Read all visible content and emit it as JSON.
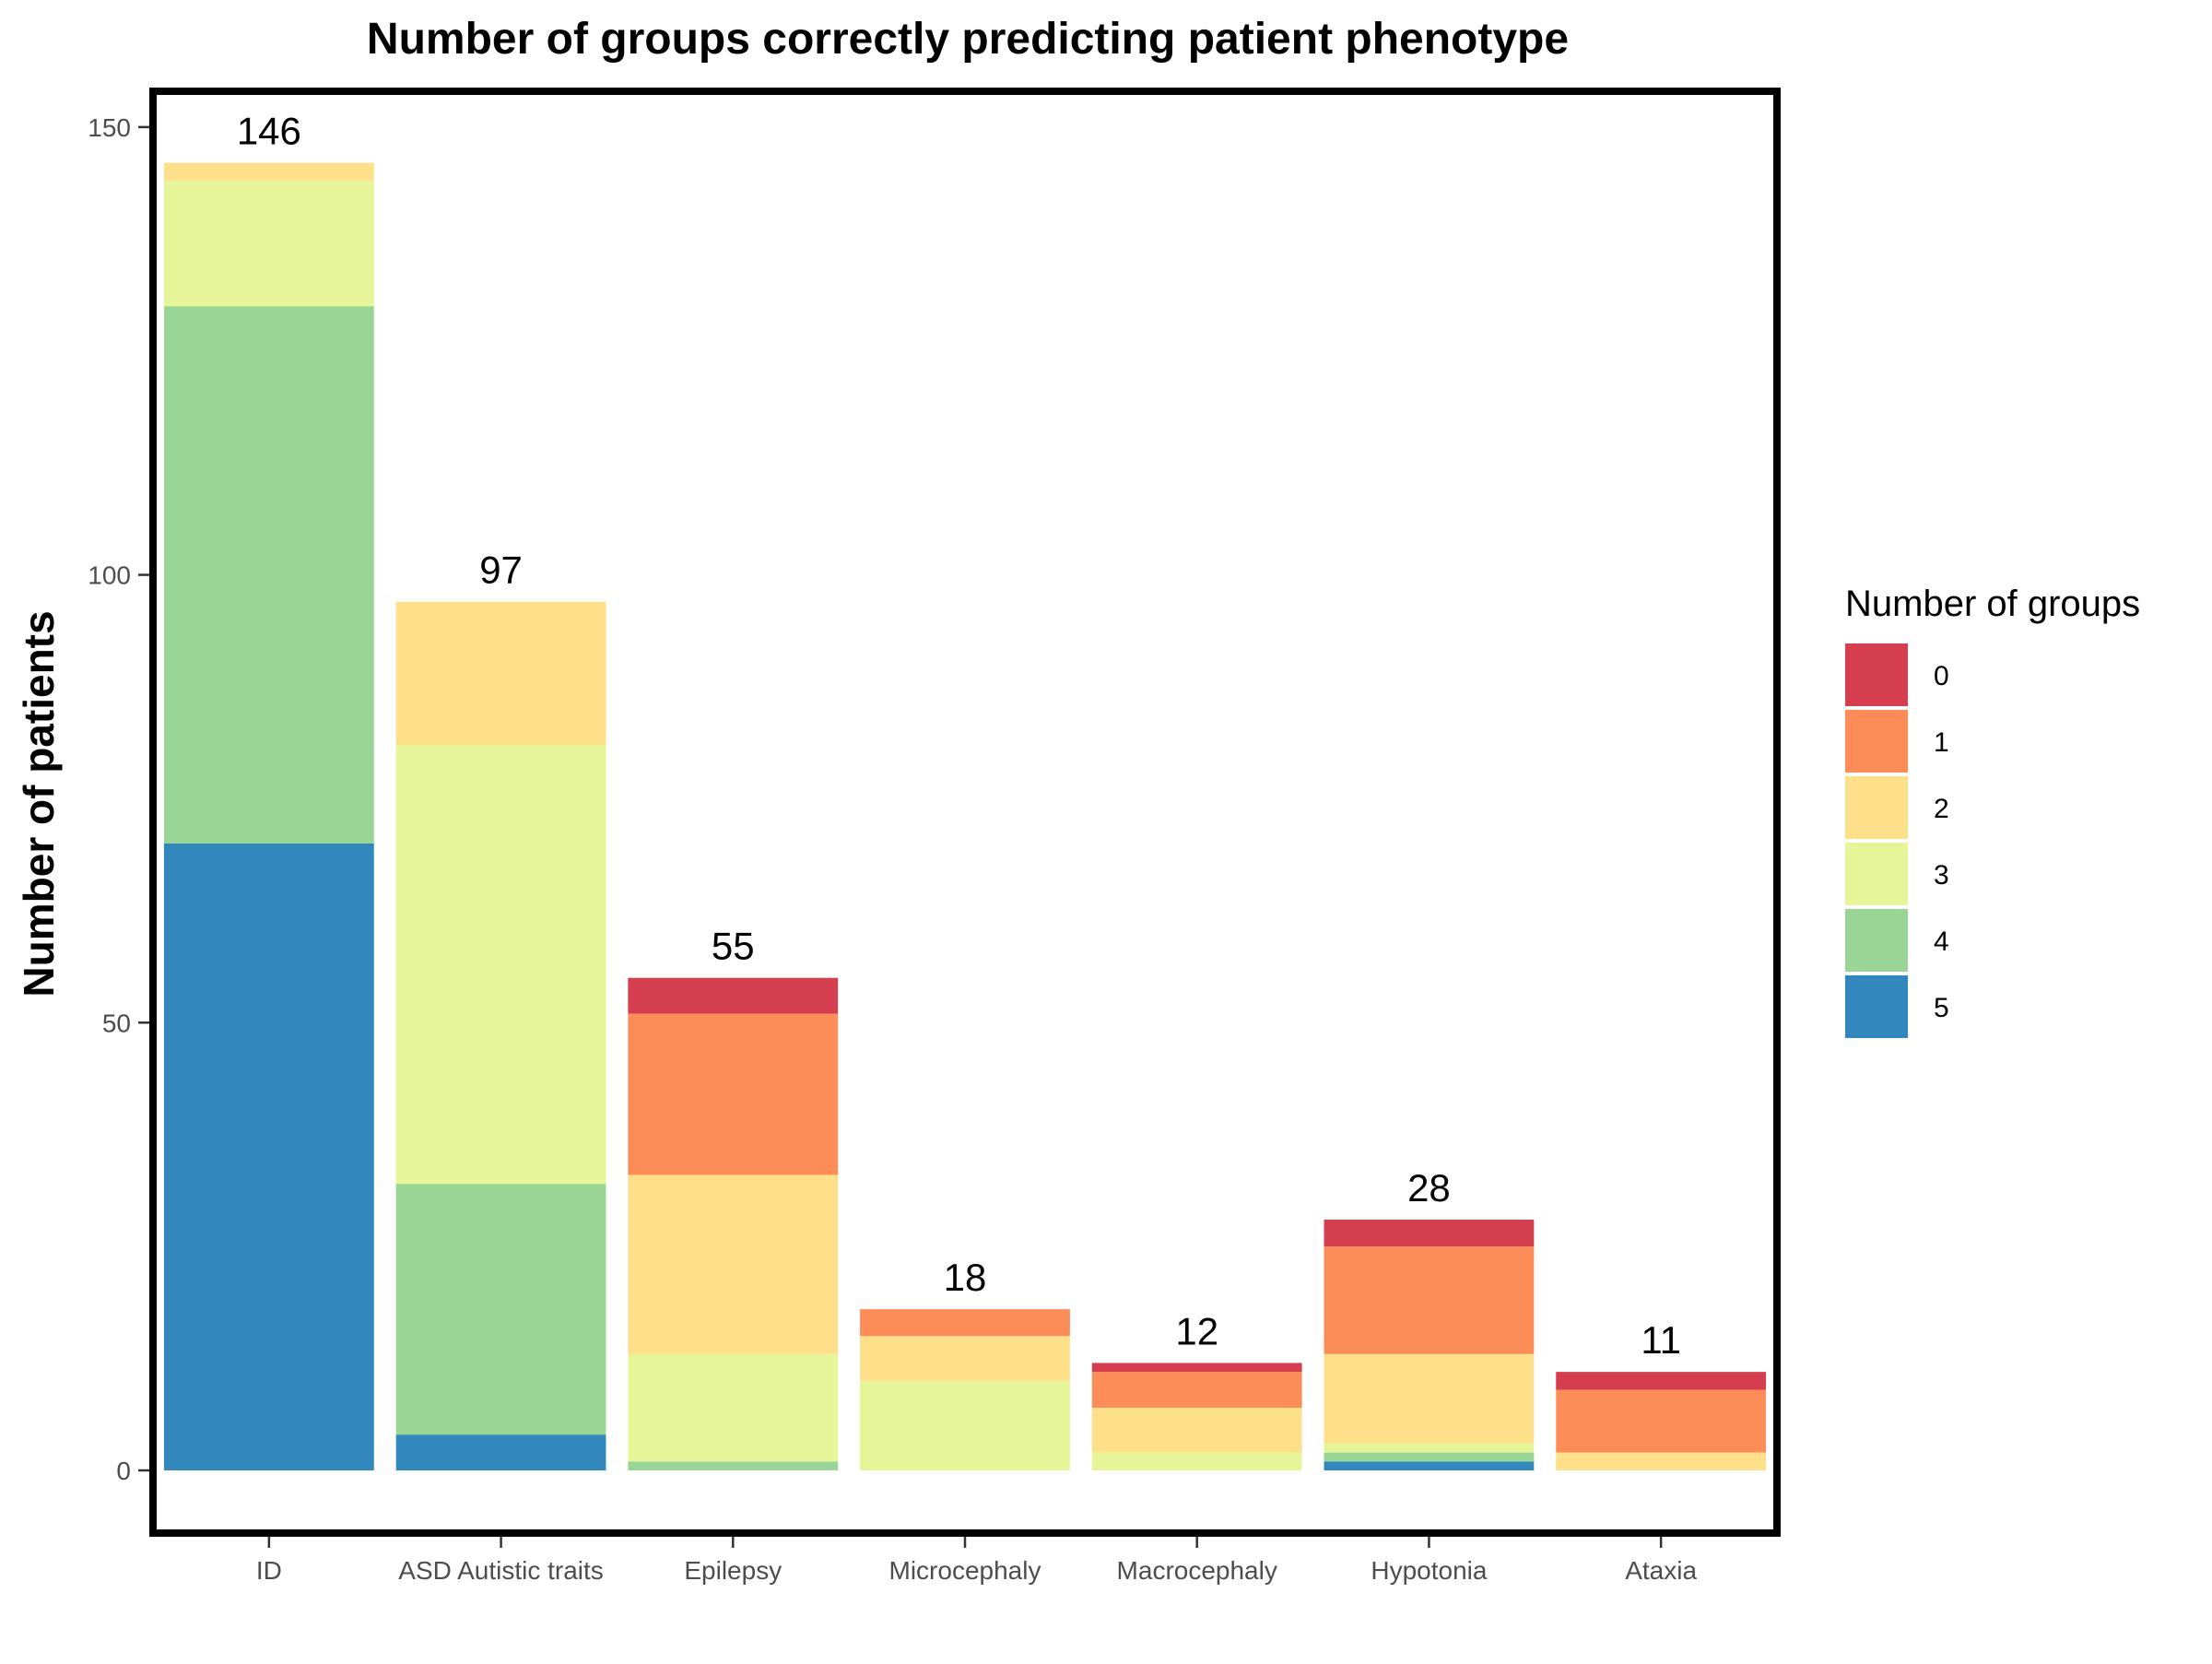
{
  "chart_data": {
    "type": "bar",
    "stacked": true,
    "title": "Number of groups correctly predicting patient phenotype",
    "xlabel": "",
    "ylabel": "Number of patients",
    "ylim": [
      -7,
      154
    ],
    "yticks": [
      0,
      50,
      100,
      150
    ],
    "categories": [
      "ID",
      "ASD Autistic traits",
      "Epilepsy",
      "Microcephaly",
      "Macrocephaly",
      "Hypotonia",
      "Ataxia"
    ],
    "totals": [
      146,
      97,
      55,
      18,
      12,
      28,
      11
    ],
    "legend": {
      "title": "Number of groups",
      "position": "right"
    },
    "series": [
      {
        "name": "0",
        "color": "#d53e4f",
        "values": [
          0,
          0,
          4,
          0,
          1,
          3,
          2
        ]
      },
      {
        "name": "1",
        "color": "#fc8d59",
        "values": [
          0,
          0,
          18,
          3,
          4,
          12,
          7
        ]
      },
      {
        "name": "2",
        "color": "#fee08b",
        "values": [
          2,
          16,
          20,
          5,
          5,
          10,
          2
        ]
      },
      {
        "name": "3",
        "color": "#e6f598",
        "values": [
          14,
          49,
          12,
          10,
          2,
          1,
          0
        ]
      },
      {
        "name": "4",
        "color": "#99d594",
        "values": [
          60,
          28,
          1,
          0,
          0,
          1,
          0
        ]
      },
      {
        "name": "5",
        "color": "#3288bd",
        "values": [
          70,
          4,
          0,
          0,
          0,
          1,
          0
        ]
      }
    ],
    "grid": false
  }
}
